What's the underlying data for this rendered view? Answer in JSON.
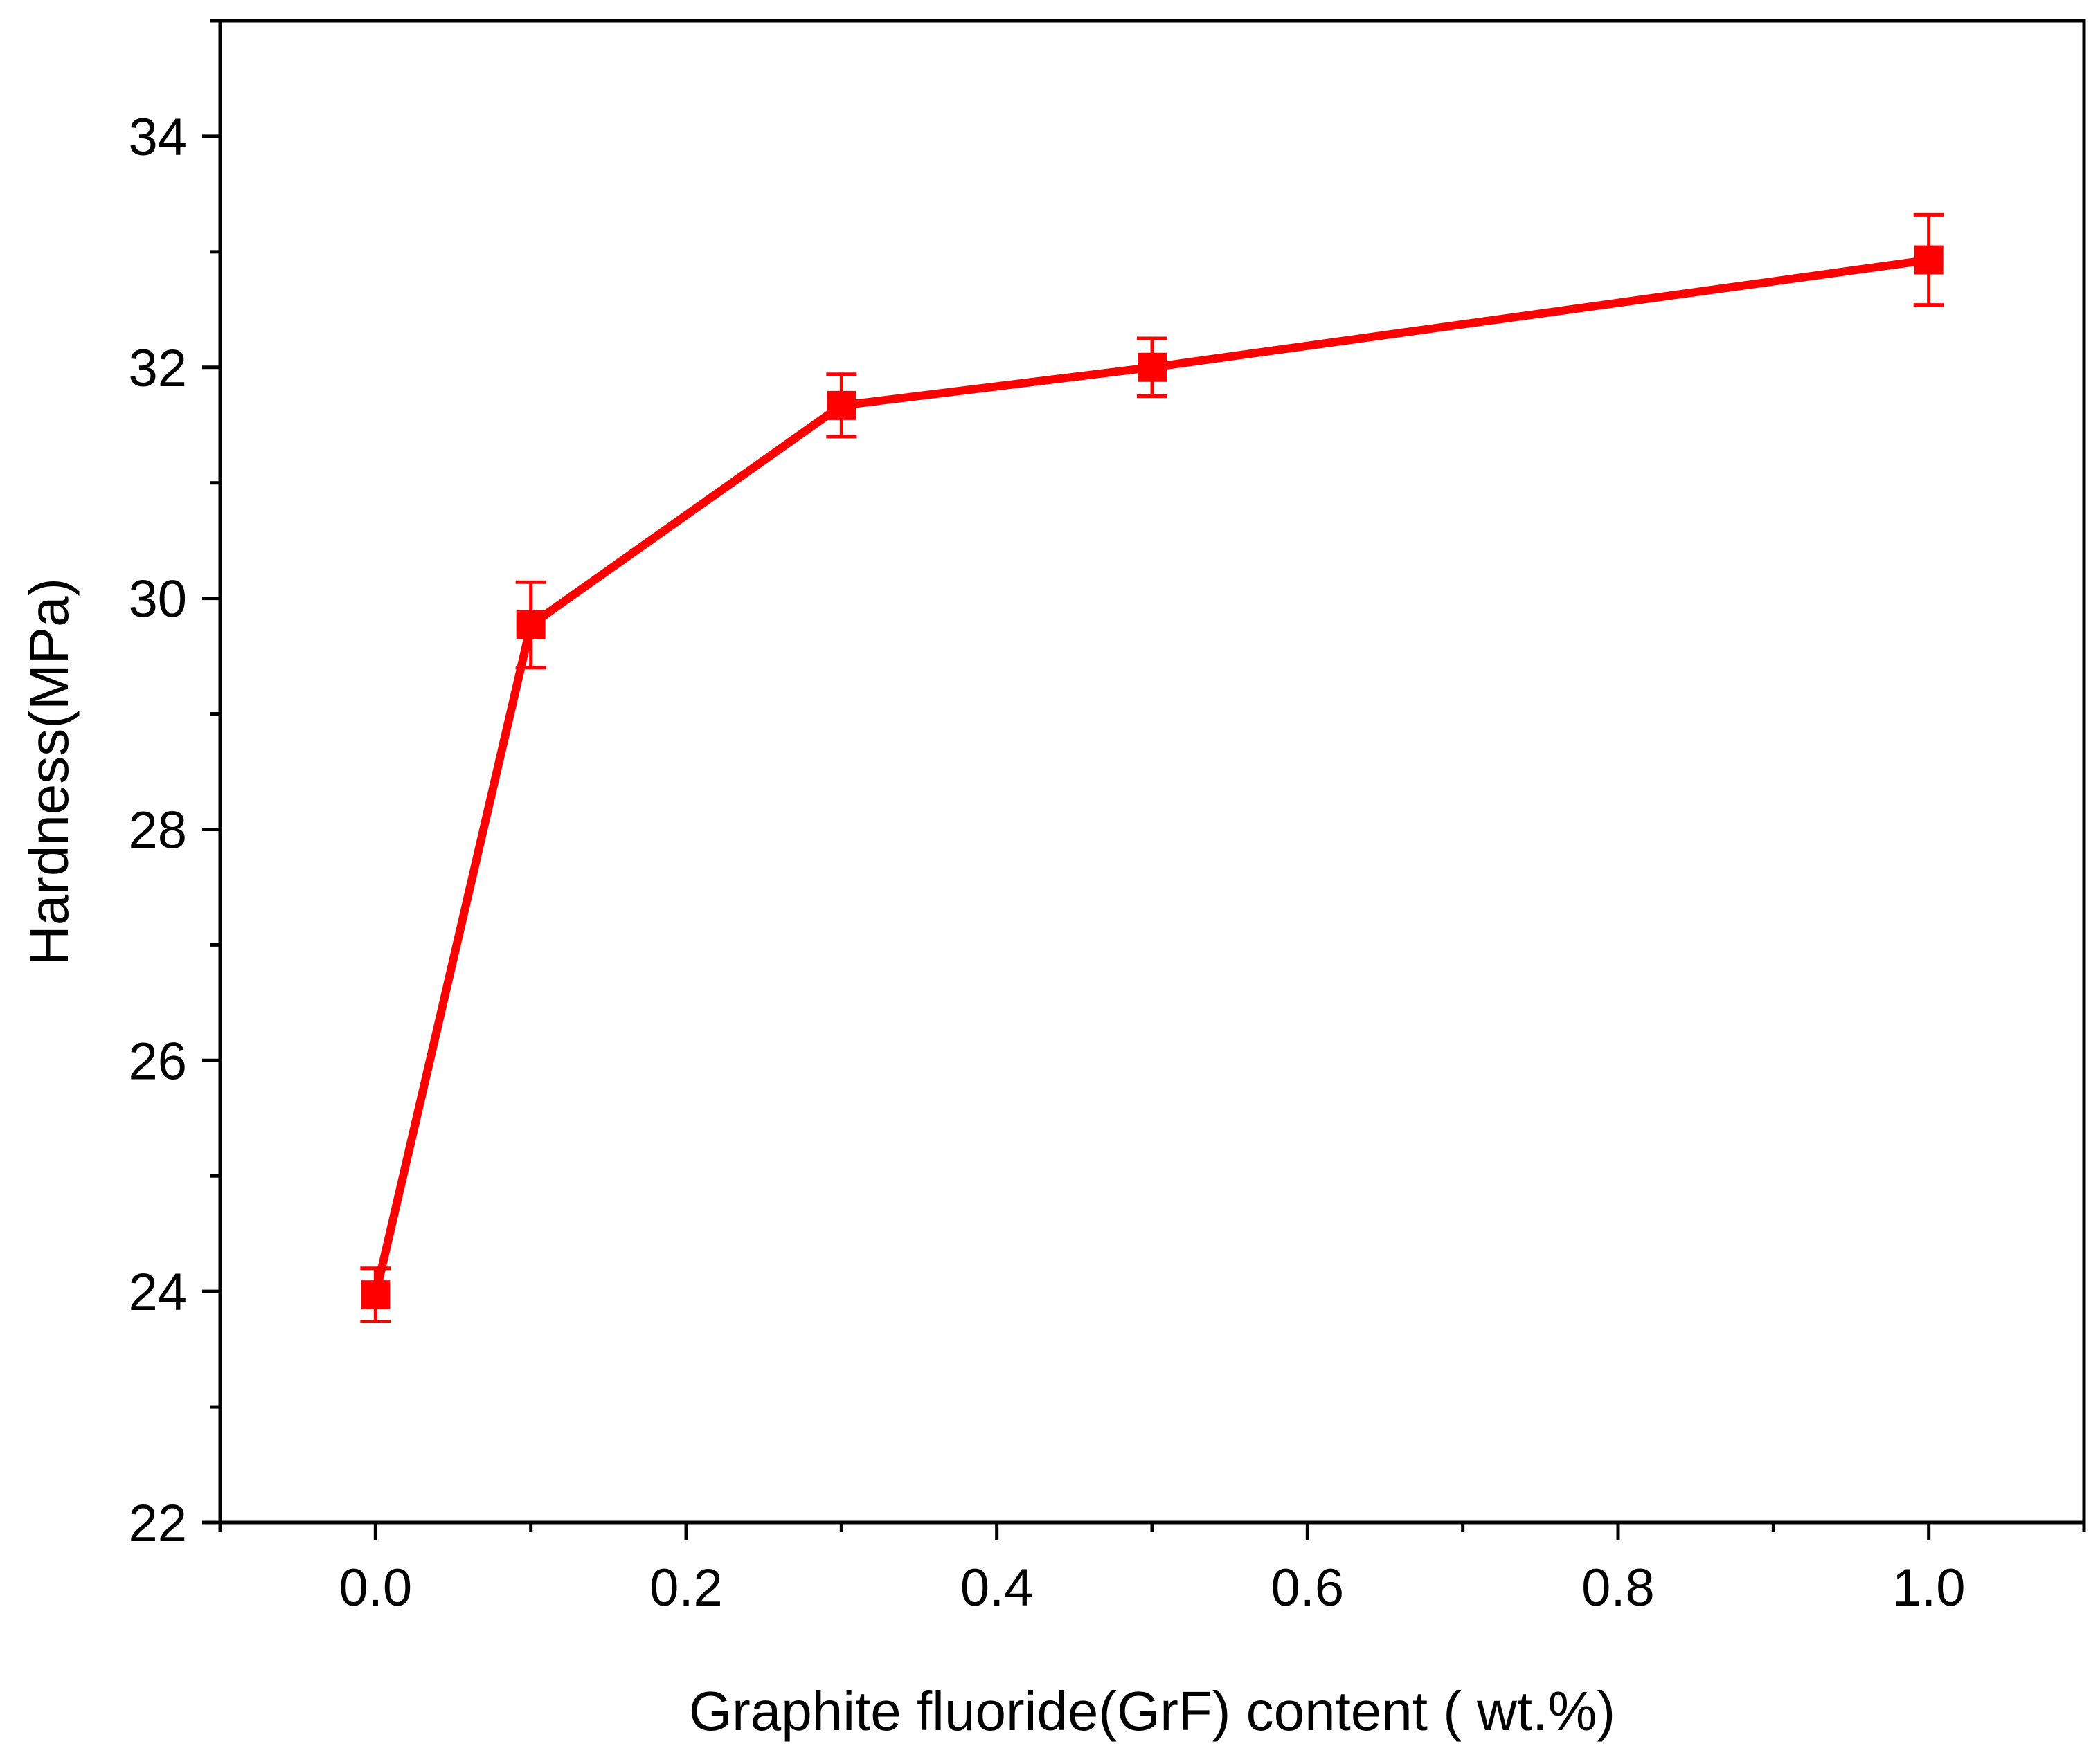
{
  "chart_data": {
    "type": "line",
    "title": "",
    "xlabel": "Graphite fluoride(GrF) content ( wt.%)",
    "ylabel": "Hardness(MPa)",
    "xlim": [
      -0.1,
      1.1
    ],
    "ylim": [
      22,
      35
    ],
    "xticks": [
      "0.0",
      "0.2",
      "0.4",
      "0.6",
      "0.8",
      "1.0"
    ],
    "yticks": [
      "22",
      "24",
      "26",
      "28",
      "30",
      "32",
      "34"
    ],
    "color": "#ff0000",
    "marker": "square",
    "grid": false,
    "legend": "none",
    "series": [
      {
        "x": [
          0.0,
          0.1,
          0.3,
          0.5,
          1.0
        ],
        "y": [
          23.97,
          29.77,
          31.67,
          32.0,
          32.93
        ],
        "error": [
          0.23,
          0.37,
          0.27,
          0.25,
          0.39
        ]
      }
    ]
  }
}
